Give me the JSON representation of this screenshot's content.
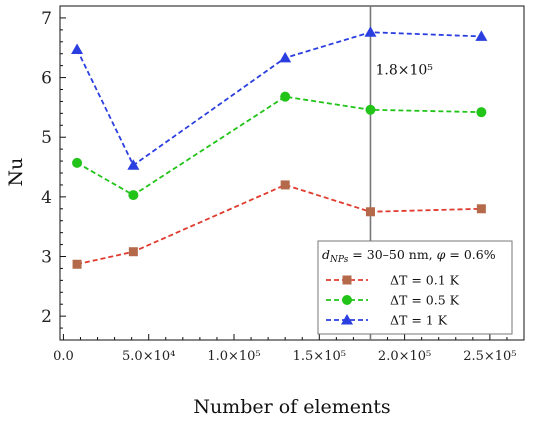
{
  "chart_data": {
    "type": "line",
    "xlabel": "Number of elements",
    "ylabel": "Nu",
    "xlim": [
      -2000,
      270000
    ],
    "ylim": [
      1.6,
      7.2
    ],
    "x_ticks": [
      0,
      50000,
      100000,
      150000,
      200000,
      250000
    ],
    "x_tick_labels": [
      "0.0",
      "5.0×10⁴",
      "1.0×10⁵",
      "1.5×10⁵",
      "2.0×10⁵",
      "2.5×10⁵"
    ],
    "y_ticks": [
      2,
      3,
      4,
      5,
      6,
      7
    ],
    "y_tick_labels": [
      "2",
      "3",
      "4",
      "5",
      "6",
      "7"
    ],
    "grid": false,
    "x": [
      8000,
      41000,
      130000,
      180000,
      245000
    ],
    "series": [
      {
        "name": "ΔT = 0.1 K",
        "values": [
          2.87,
          3.08,
          4.2,
          3.75,
          3.8
        ],
        "color": "#e03a2e",
        "marker": "square",
        "marker_color": "#b4694a"
      },
      {
        "name": "ΔT = 0.5 K",
        "values": [
          4.57,
          4.03,
          5.68,
          5.46,
          5.42
        ],
        "color": "#22c41a",
        "marker": "circle",
        "marker_color": "#22c41a"
      },
      {
        "name": "ΔT = 1 K",
        "values": [
          6.47,
          4.53,
          6.33,
          6.76,
          6.69
        ],
        "color": "#2b3fe0",
        "marker": "triangle",
        "marker_color": "#2b3fe0"
      }
    ],
    "reference_line": {
      "x": 180000,
      "label": "1.8×10⁵"
    },
    "legend": {
      "placement": "bottom-right",
      "title": "d_NPs = 30–50 nm, φ = 0.6%",
      "title_main_d": "d",
      "title_sub": "NPs",
      "title_rest": " = 30–50 nm, ",
      "title_phi": "φ",
      "title_tail": " = 0.6%"
    }
  }
}
